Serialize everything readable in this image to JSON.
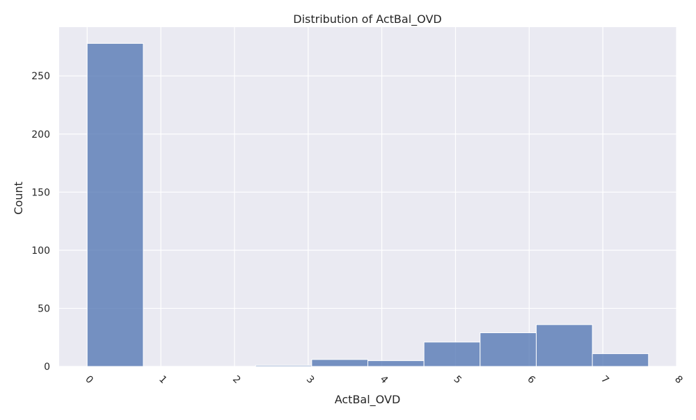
{
  "chart_data": {
    "type": "bar",
    "title": "Distribution of ActBal_OVD",
    "xlabel": "ActBal_OVD",
    "ylabel": "Count",
    "xlim": [
      -0.38,
      8.0
    ],
    "ylim": [
      0,
      292
    ],
    "xticks": [
      0,
      1,
      2,
      3,
      4,
      5,
      6,
      7,
      8
    ],
    "yticks": [
      0,
      50,
      100,
      150,
      200,
      250
    ],
    "xtick_rotation": 45,
    "grid": true,
    "bins": [
      {
        "x0": 0.0,
        "x1": 0.762,
        "count": 278
      },
      {
        "x0": 0.762,
        "x1": 1.524,
        "count": 0
      },
      {
        "x0": 1.524,
        "x1": 2.286,
        "count": 0
      },
      {
        "x0": 2.286,
        "x1": 3.048,
        "count": 1
      },
      {
        "x0": 3.048,
        "x1": 3.81,
        "count": 6
      },
      {
        "x0": 3.81,
        "x1": 4.572,
        "count": 5
      },
      {
        "x0": 4.572,
        "x1": 5.334,
        "count": 21
      },
      {
        "x0": 5.334,
        "x1": 6.096,
        "count": 29
      },
      {
        "x0": 6.096,
        "x1": 6.858,
        "count": 36
      },
      {
        "x0": 6.858,
        "x1": 7.62,
        "count": 11
      }
    ],
    "colors": {
      "background": "#EAEAF2",
      "grid": "#FFFFFF",
      "bar_fill": "#4C72B0",
      "bar_opacity": 0.75,
      "bar_edge": "#FFFFFF"
    }
  }
}
